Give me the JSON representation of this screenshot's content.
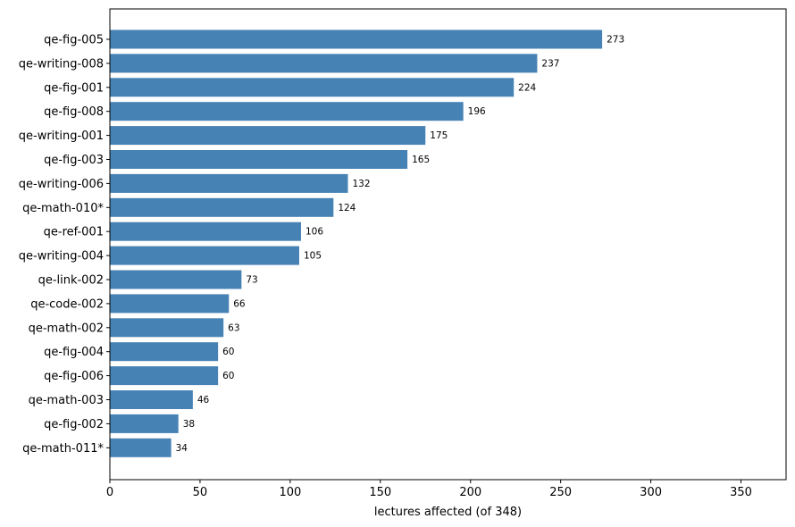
{
  "chart_data": {
    "type": "bar",
    "orientation": "horizontal",
    "categories": [
      "qe-fig-005",
      "qe-writing-008",
      "qe-fig-001",
      "qe-fig-008",
      "qe-writing-001",
      "qe-fig-003",
      "qe-writing-006",
      "qe-math-010*",
      "qe-ref-001",
      "qe-writing-004",
      "qe-link-002",
      "qe-code-002",
      "qe-math-002",
      "qe-fig-004",
      "qe-fig-006",
      "qe-math-003",
      "qe-fig-002",
      "qe-math-011*"
    ],
    "values": [
      273,
      237,
      224,
      196,
      175,
      165,
      132,
      124,
      106,
      105,
      73,
      66,
      63,
      60,
      60,
      46,
      38,
      34
    ],
    "title": "",
    "xlabel": "lectures affected (of 348)",
    "ylabel": "",
    "xlim": [
      0,
      375
    ],
    "xticks": [
      0,
      50,
      100,
      150,
      200,
      250,
      300,
      350
    ],
    "grid": false,
    "legend": "none",
    "bar_color": "#4682b4"
  }
}
